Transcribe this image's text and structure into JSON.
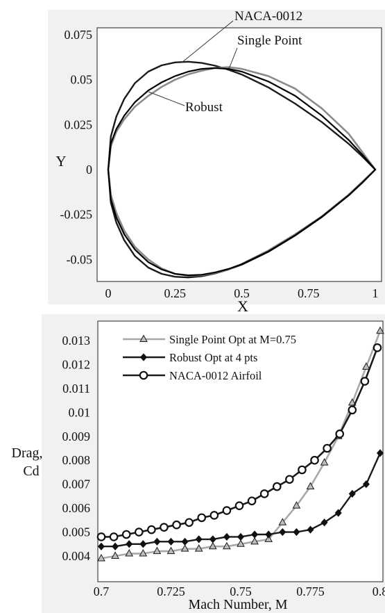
{
  "chart_data": [
    {
      "type": "line",
      "xlabel": "X",
      "ylabel": "Y",
      "xlim": [
        0,
        1
      ],
      "ylim": [
        -0.062,
        0.078
      ],
      "xticks": [
        "0",
        "0.25",
        "0.5",
        "0.75",
        "1"
      ],
      "xtick_values": [
        0,
        0.25,
        0.5,
        0.75,
        1
      ],
      "yticks": [
        "0.075",
        "0.05",
        "0.025",
        "0",
        "-0.025",
        "-0.05"
      ],
      "ytick_values": [
        0.075,
        0.05,
        0.025,
        0,
        -0.025,
        -0.05
      ],
      "grid": false,
      "series": [
        {
          "name": "NACA-0012",
          "color": "#1a1a1a",
          "x": [
            1.0,
            0.95,
            0.9,
            0.8,
            0.7,
            0.6,
            0.5,
            0.45,
            0.4,
            0.35,
            0.3,
            0.25,
            0.2,
            0.15,
            0.1,
            0.06,
            0.03,
            0.01,
            0.0,
            0.01,
            0.03,
            0.06,
            0.1,
            0.15,
            0.2,
            0.25,
            0.3,
            0.35,
            0.4,
            0.45,
            0.5,
            0.6,
            0.7,
            0.8,
            0.9,
            0.95,
            1.0
          ],
          "y": [
            0.0,
            0.0075,
            0.0144,
            0.0264,
            0.0367,
            0.0457,
            0.0529,
            0.0556,
            0.0578,
            0.0593,
            0.06,
            0.0596,
            0.058,
            0.0545,
            0.0481,
            0.0393,
            0.0294,
            0.0184,
            0.0,
            -0.0184,
            -0.0294,
            -0.0393,
            -0.0481,
            -0.0545,
            -0.058,
            -0.0596,
            -0.06,
            -0.0593,
            -0.0578,
            -0.0556,
            -0.0529,
            -0.0457,
            -0.0367,
            -0.0264,
            -0.0144,
            -0.0075,
            0.0
          ]
        },
        {
          "name": "Single Point",
          "color": "#8a8a8a",
          "x": [
            1.0,
            0.95,
            0.9,
            0.8,
            0.7,
            0.6,
            0.5,
            0.45,
            0.4,
            0.35,
            0.3,
            0.25,
            0.2,
            0.15,
            0.1,
            0.06,
            0.03,
            0.01,
            0.0,
            0.01,
            0.03,
            0.06,
            0.1,
            0.15,
            0.2,
            0.25,
            0.3,
            0.35,
            0.4,
            0.45,
            0.5,
            0.6,
            0.7,
            0.8,
            0.9,
            0.95,
            1.0
          ],
          "y": [
            0.0,
            0.01,
            0.02,
            0.034,
            0.045,
            0.052,
            0.056,
            0.057,
            0.0565,
            0.055,
            0.053,
            0.05,
            0.046,
            0.041,
            0.035,
            0.028,
            0.021,
            0.013,
            0.0,
            -0.014,
            -0.024,
            -0.034,
            -0.043,
            -0.05,
            -0.055,
            -0.058,
            -0.059,
            -0.0588,
            -0.0575,
            -0.0555,
            -0.0525,
            -0.045,
            -0.036,
            -0.026,
            -0.014,
            -0.007,
            0.0
          ]
        },
        {
          "name": "Robust",
          "color": "#000000",
          "x": [
            1.0,
            0.95,
            0.9,
            0.8,
            0.7,
            0.6,
            0.5,
            0.45,
            0.4,
            0.35,
            0.3,
            0.25,
            0.2,
            0.15,
            0.1,
            0.06,
            0.03,
            0.01,
            0.0,
            0.01,
            0.03,
            0.06,
            0.1,
            0.15,
            0.2,
            0.25,
            0.3,
            0.35,
            0.4,
            0.45,
            0.5,
            0.6,
            0.7,
            0.8,
            0.9,
            0.95,
            1.0
          ],
          "y": [
            0.0,
            0.0085,
            0.0165,
            0.03,
            0.041,
            0.049,
            0.0545,
            0.056,
            0.0565,
            0.056,
            0.0545,
            0.052,
            0.0485,
            0.044,
            0.0375,
            0.03,
            0.0225,
            0.0145,
            0.0,
            -0.0165,
            -0.0265,
            -0.036,
            -0.0445,
            -0.0515,
            -0.0555,
            -0.058,
            -0.0588,
            -0.0585,
            -0.0572,
            -0.0553,
            -0.0527,
            -0.0455,
            -0.0365,
            -0.0262,
            -0.0143,
            -0.0074,
            0.0
          ]
        }
      ]
    },
    {
      "type": "line",
      "xlabel": "Mach Number, M",
      "ylabel": "Drag, Cd",
      "ylabel_lines": [
        "Drag,",
        "Cd"
      ],
      "xlim": [
        0.7,
        0.8
      ],
      "ylim": [
        0.0033,
        0.0134
      ],
      "xticks": [
        "0.7",
        "0.725",
        "0.75",
        "0.775",
        "0.8"
      ],
      "xtick_values": [
        0.7,
        0.725,
        0.75,
        0.775,
        0.8
      ],
      "yticks": [
        "0.013",
        "0.012",
        "0.011",
        "0.01",
        "0.009",
        "0.008",
        "0.007",
        "0.006",
        "0.005",
        "0.004"
      ],
      "ytick_values": [
        0.013,
        0.012,
        0.011,
        0.01,
        0.009,
        0.008,
        0.007,
        0.006,
        0.005,
        0.004
      ],
      "grid": false,
      "legend": "top-left",
      "series": [
        {
          "name": "Single Point Opt at M=0.75",
          "color": "#a8a8a8",
          "marker": "triangle",
          "x": [
            0.7,
            0.705,
            0.71,
            0.715,
            0.72,
            0.725,
            0.73,
            0.735,
            0.74,
            0.745,
            0.75,
            0.755,
            0.76,
            0.765,
            0.77,
            0.775,
            0.78,
            0.785,
            0.79,
            0.795,
            0.8
          ],
          "y": [
            0.0039,
            0.004,
            0.0041,
            0.0041,
            0.0042,
            0.0042,
            0.0043,
            0.0043,
            0.0044,
            0.0044,
            0.0045,
            0.0046,
            0.0047,
            0.0054,
            0.0061,
            0.0069,
            0.0079,
            0.009,
            0.0104,
            0.0119,
            0.0134
          ]
        },
        {
          "name": "Robust Opt at 4 pts",
          "color": "#1a1a1a",
          "marker": "diamond",
          "x": [
            0.7,
            0.705,
            0.71,
            0.715,
            0.72,
            0.725,
            0.73,
            0.735,
            0.74,
            0.745,
            0.75,
            0.755,
            0.76,
            0.765,
            0.77,
            0.775,
            0.78,
            0.785,
            0.79,
            0.795,
            0.8
          ],
          "y": [
            0.0044,
            0.0044,
            0.0045,
            0.0045,
            0.0046,
            0.0046,
            0.0046,
            0.0047,
            0.0047,
            0.0048,
            0.0048,
            0.0049,
            0.0049,
            0.005,
            0.005,
            0.0051,
            0.0054,
            0.0058,
            0.0066,
            0.007,
            0.0083
          ]
        },
        {
          "name": "NACA-0012 Airfoil",
          "color": "#1a1a1a",
          "marker": "circle-open",
          "x": [
            0.7,
            0.7045,
            0.709,
            0.7135,
            0.718,
            0.7225,
            0.727,
            0.7315,
            0.736,
            0.7405,
            0.745,
            0.7495,
            0.754,
            0.7585,
            0.763,
            0.7675,
            0.772,
            0.7765,
            0.781,
            0.7855,
            0.79,
            0.7945,
            0.799
          ],
          "y": [
            0.0048,
            0.0048,
            0.0049,
            0.005,
            0.0051,
            0.0052,
            0.0053,
            0.0054,
            0.0056,
            0.0057,
            0.0059,
            0.0061,
            0.0063,
            0.0066,
            0.0069,
            0.0072,
            0.0076,
            0.008,
            0.0085,
            0.0091,
            0.0101,
            0.0113,
            0.0127
          ]
        }
      ]
    }
  ]
}
